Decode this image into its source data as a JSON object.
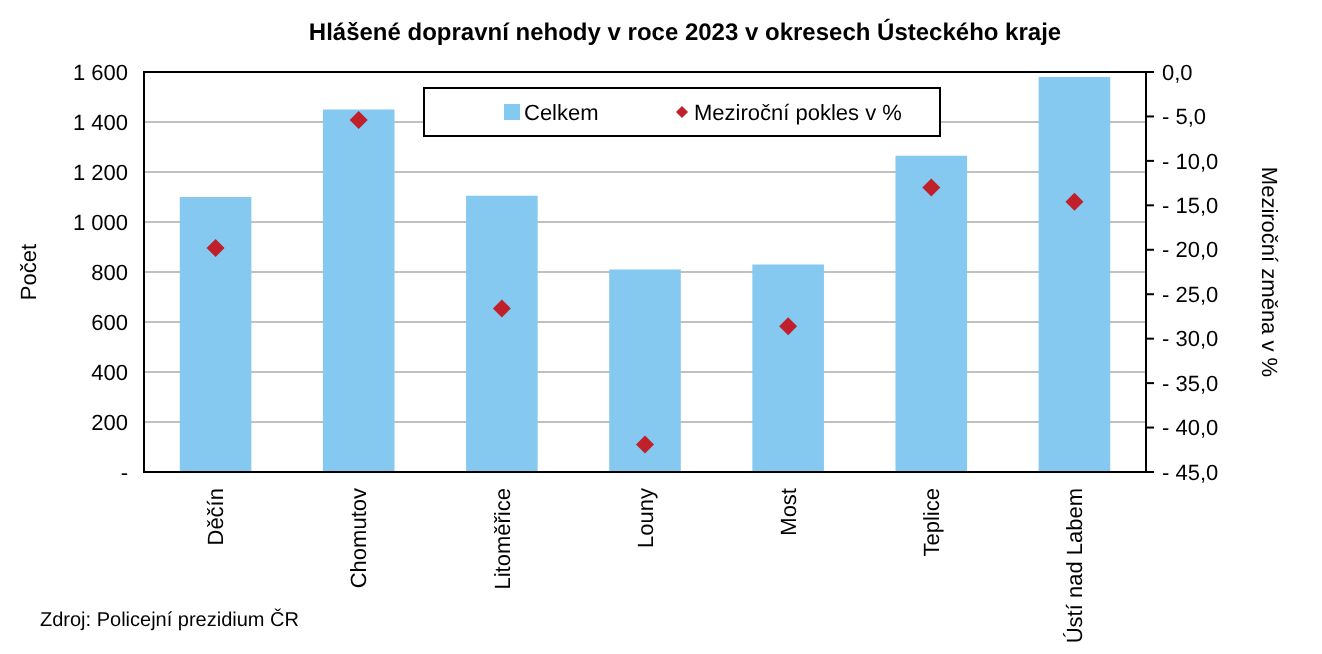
{
  "chart_data": {
    "type": "bar",
    "title": "Hlášené dopravní  nehody  v roce 2023 v okresech Ústeckého kraje",
    "ylabel": "Počet",
    "y2label": "Meziroční změna v %",
    "categories": [
      "Děčín",
      "Chomutov",
      "Litoměřice",
      "Louny",
      "Most",
      "Teplice",
      "Ústí nad Labem"
    ],
    "series": [
      {
        "name": "Celkem",
        "color": "#85c8f0",
        "values": [
          1100,
          1450,
          1105,
          810,
          830,
          1265,
          1580
        ]
      },
      {
        "name": "Meziroční pokles v %",
        "type": "scatter",
        "axis": "y2",
        "color": "#c0202a",
        "values": [
          -19.8,
          -5.4,
          -26.6,
          -41.9,
          -28.6,
          -13.0,
          -14.6
        ]
      }
    ],
    "ylim": [
      0,
      1600
    ],
    "yticks": [
      {
        "value": 0,
        "label": "-"
      },
      200,
      400,
      600,
      800,
      {
        "value": 1000,
        "label": "1 000"
      },
      {
        "value": 1200,
        "label": "1 200"
      },
      {
        "value": 1400,
        "label": "1 400"
      },
      {
        "value": 1600,
        "label": "1 600"
      }
    ],
    "y2lim": [
      -45,
      0
    ],
    "y2ticks": [
      {
        "value": 0,
        "label": "0,0"
      },
      {
        "value": -5,
        "label": "- 5,0"
      },
      {
        "value": -10,
        "label": "- 10,0"
      },
      {
        "value": -15,
        "label": "- 15,0"
      },
      {
        "value": -20,
        "label": "- 20,0"
      },
      {
        "value": -25,
        "label": "- 25,0"
      },
      {
        "value": -30,
        "label": "- 30,0"
      },
      {
        "value": -35,
        "label": "- 35,0"
      },
      {
        "value": -40,
        "label": "- 40,0"
      },
      {
        "value": -45,
        "label": "- 45,0"
      }
    ],
    "grid": "y",
    "legend": "top",
    "marker": "diamond",
    "annotations": [
      "Zdroj: Policejní  prezidium ČR"
    ]
  }
}
